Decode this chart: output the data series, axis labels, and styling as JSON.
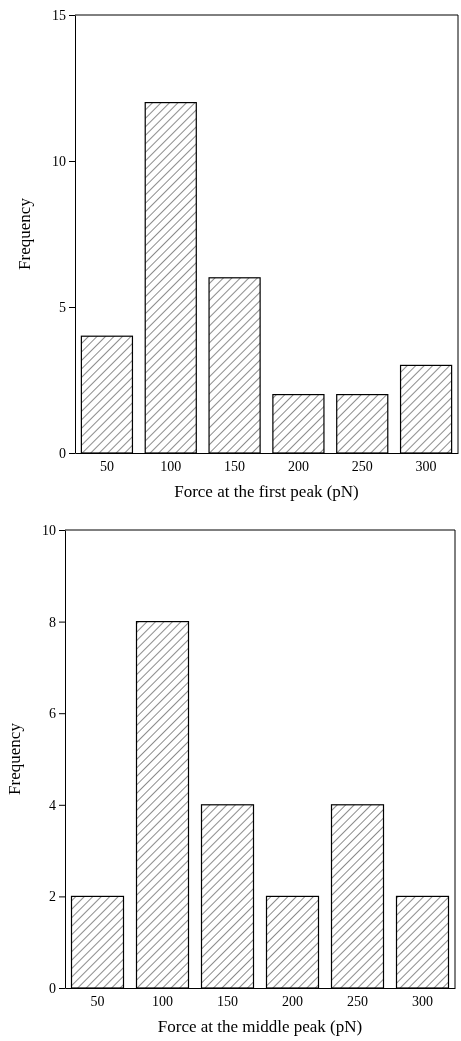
{
  "chart_data": [
    {
      "type": "bar",
      "categories": [
        "50",
        "100",
        "150",
        "200",
        "250",
        "300"
      ],
      "values": [
        4,
        12,
        6,
        2,
        2,
        3
      ],
      "color": "#000000",
      "ylim": [
        0,
        15
      ],
      "yticks": [
        0,
        5,
        10,
        15
      ],
      "xlabel": "Force at the first peak (pN)",
      "ylabel": "Frequency",
      "grid": false
    },
    {
      "type": "bar",
      "categories": [
        "50",
        "100",
        "150",
        "200",
        "250",
        "300"
      ],
      "values": [
        2,
        8,
        4,
        2,
        4,
        2
      ],
      "color": "#000000",
      "ylim": [
        0,
        10
      ],
      "yticks": [
        0,
        2,
        4,
        6,
        8,
        10
      ],
      "xlabel": "Force at the middle peak (pN)",
      "ylabel": "Frequency",
      "grid": false
    }
  ]
}
